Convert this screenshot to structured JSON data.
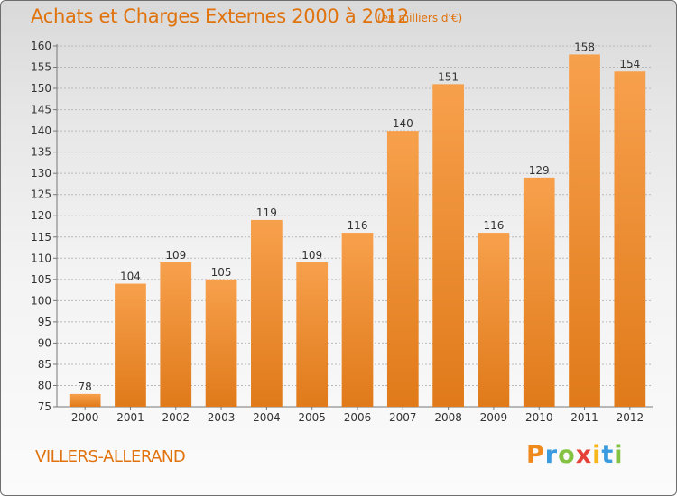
{
  "title": "Achats et Charges Externes 2000 à 2012",
  "subtitle": "(en milliers d'€)",
  "place": "VILLERS-ALLERAND",
  "logo": {
    "text": "Proxiti",
    "letters": [
      {
        "ch": "P",
        "color": "#f08a1c"
      },
      {
        "ch": "r",
        "color": "#3a9be0"
      },
      {
        "ch": "o",
        "color": "#83c341"
      },
      {
        "ch": "x",
        "color": "#e64136"
      },
      {
        "ch": "i",
        "color": "#f5b71a"
      },
      {
        "ch": "t",
        "color": "#3a9be0"
      },
      {
        "ch": "i",
        "color": "#83c341"
      }
    ]
  },
  "colors": {
    "accent": "#e0730e",
    "bar_light": "#f7a04c",
    "bar_dark": "#e07a1a",
    "grid": "#b8b8b8"
  },
  "chart_data": {
    "type": "bar",
    "categories": [
      "2000",
      "2001",
      "2002",
      "2003",
      "2004",
      "2005",
      "2006",
      "2007",
      "2008",
      "2009",
      "2010",
      "2011",
      "2012"
    ],
    "values": [
      78,
      104,
      109,
      105,
      119,
      109,
      116,
      140,
      151,
      116,
      129,
      158,
      154
    ],
    "ylim": [
      75,
      160
    ],
    "yticks": [
      75,
      80,
      85,
      90,
      95,
      100,
      105,
      110,
      115,
      120,
      125,
      130,
      135,
      140,
      145,
      150,
      155,
      160
    ],
    "grid": true,
    "xlabel": "",
    "ylabel": ""
  }
}
